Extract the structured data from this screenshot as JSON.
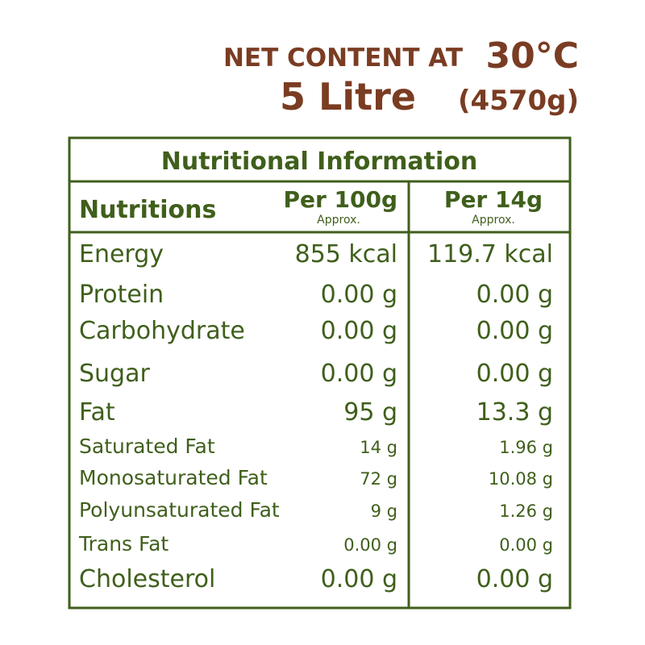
{
  "header": {
    "line1": {
      "text": "NET CONTENT AT",
      "temperature": "30°C"
    },
    "line2": {
      "volume": "5 Litre",
      "weight": "(4570g)"
    }
  },
  "table": {
    "title": "Nutritional Information",
    "columns": [
      {
        "label": "Nutritions"
      },
      {
        "label": "Per 100g",
        "note": "Approx."
      },
      {
        "label": "Per 14g",
        "note": "Approx."
      }
    ],
    "rows": [
      [
        "Energy",
        "855 kcal",
        "119.7 kcal"
      ],
      [
        "Protein",
        "0.00 g",
        "0.00 g"
      ],
      [
        "Carbohydrate",
        "0.00 g",
        "0.00 g"
      ],
      [
        "Sugar",
        "0.00 g",
        "0.00 g"
      ],
      [
        "Fat",
        "95 g",
        "13.3 g"
      ],
      [
        "Saturated Fat",
        "14 g",
        "1.96 g"
      ],
      [
        "Monosaturated Fat",
        "72 g",
        "10.08 g"
      ],
      [
        "Polyunsaturated Fat",
        "9 g",
        "1.26 g"
      ],
      [
        "Trans Fat",
        "0.00 g",
        "0.00 g"
      ],
      [
        "Cholesterol",
        "0.00 g",
        "0.00 g"
      ]
    ]
  }
}
